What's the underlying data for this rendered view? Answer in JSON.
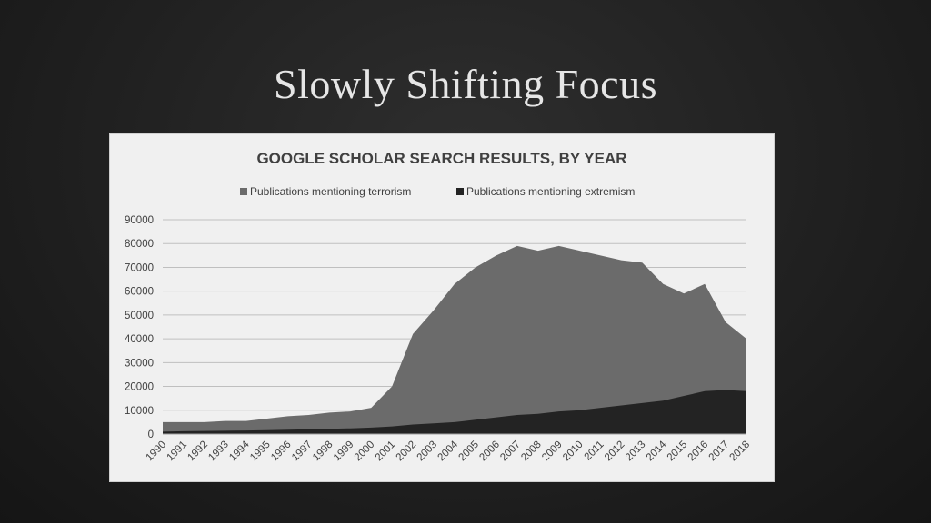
{
  "slide": {
    "title": "Slowly Shifting Focus"
  },
  "colors": {
    "terrorism": "#6b6b6b",
    "extremism": "#232323",
    "grid": "#bfbfbf"
  },
  "chart_data": {
    "type": "area",
    "title": "GOOGLE SCHOLAR SEARCH RESULTS, BY YEAR",
    "xlabel": "",
    "ylabel": "",
    "ylim": [
      0,
      90000
    ],
    "yticks": [
      "0",
      "10000",
      "20000",
      "30000",
      "40000",
      "50000",
      "60000",
      "70000",
      "80000",
      "90000"
    ],
    "grid": true,
    "legend_position": "top",
    "x": [
      "1990",
      "1991",
      "1992",
      "1993",
      "1994",
      "1995",
      "1996",
      "1997",
      "1998",
      "1999",
      "2000",
      "2001",
      "2002",
      "2003",
      "2004",
      "2005",
      "2006",
      "2007",
      "2008",
      "2009",
      "2010",
      "2011",
      "2012",
      "2013",
      "2014",
      "2015",
      "2016",
      "2017",
      "2018"
    ],
    "series": [
      {
        "name": "Publications mentioning terrorism",
        "values": [
          5000,
          5000,
          5000,
          5500,
          5500,
          6500,
          7500,
          8000,
          9000,
          9500,
          11000,
          20000,
          42000,
          52000,
          63000,
          70000,
          75000,
          79000,
          77000,
          79000,
          77000,
          75000,
          73000,
          72000,
          63000,
          59000,
          63000,
          47000,
          40000
        ]
      },
      {
        "name": "Publications mentioning extremism",
        "values": [
          1000,
          1200,
          1300,
          1400,
          1500,
          1600,
          1800,
          2000,
          2200,
          2400,
          2700,
          3200,
          4000,
          4500,
          5000,
          6000,
          7000,
          8000,
          8500,
          9500,
          10000,
          11000,
          12000,
          13000,
          14000,
          16000,
          18000,
          18500,
          18000
        ]
      }
    ]
  }
}
